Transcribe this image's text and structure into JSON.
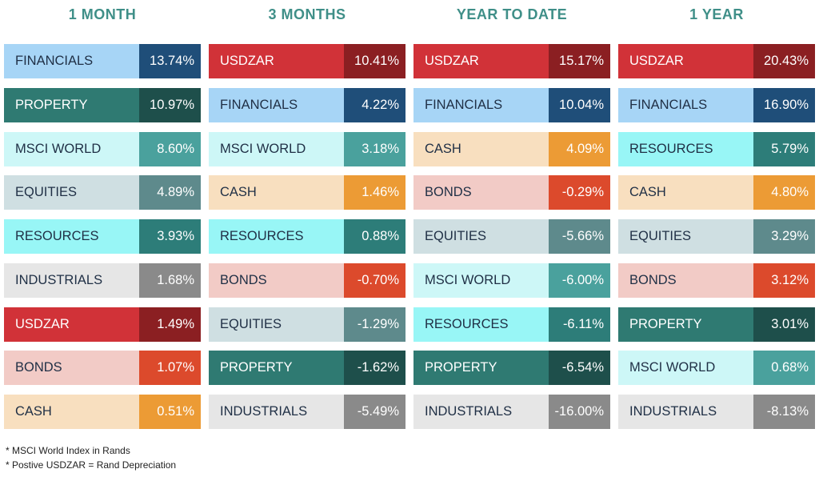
{
  "styles": {
    "FINANCIALS": {
      "bg": "#a7d5f6",
      "text": "#1f2f45",
      "valbg": "#1f4e79",
      "valtext": "#ffffff"
    },
    "PROPERTY": {
      "bg": "#2f7a72",
      "text": "#ffffff",
      "valbg": "#1e4f4b",
      "valtext": "#ffffff"
    },
    "MSCI WORLD": {
      "bg": "#cdf7f7",
      "text": "#1f2f45",
      "valbg": "#4aa19d",
      "valtext": "#ffffff"
    },
    "EQUITIES": {
      "bg": "#cfdfe2",
      "text": "#1f2f45",
      "valbg": "#5e8a8c",
      "valtext": "#ffffff"
    },
    "RESOURCES": {
      "bg": "#98f6f6",
      "text": "#1f2f45",
      "valbg": "#2d7d79",
      "valtext": "#ffffff"
    },
    "INDUSTRIALS": {
      "bg": "#e6e6e6",
      "text": "#1f2f45",
      "valbg": "#8a8a8a",
      "valtext": "#ffffff"
    },
    "USDZAR": {
      "bg": "#d13238",
      "text": "#ffffff",
      "valbg": "#8b1f22",
      "valtext": "#ffffff"
    },
    "BONDS": {
      "bg": "#f2cbc6",
      "text": "#1f2f45",
      "valbg": "#dc4a2c",
      "valtext": "#ffffff"
    },
    "CASH": {
      "bg": "#f8dfbf",
      "text": "#1f2f45",
      "valbg": "#ec9b35",
      "valtext": "#ffffff"
    }
  },
  "chart_data": [
    {
      "type": "table",
      "title": "1 MONTH",
      "rows": [
        {
          "label": "FINANCIALS",
          "value": "13.74%"
        },
        {
          "label": "PROPERTY",
          "value": "10.97%"
        },
        {
          "label": "MSCI WORLD",
          "value": "8.60%"
        },
        {
          "label": "EQUITIES",
          "value": "4.89%"
        },
        {
          "label": "RESOURCES",
          "value": "3.93%"
        },
        {
          "label": "INDUSTRIALS",
          "value": "1.68%"
        },
        {
          "label": "USDZAR",
          "value": "1.49%"
        },
        {
          "label": "BONDS",
          "value": "1.07%"
        },
        {
          "label": "CASH",
          "value": "0.51%"
        }
      ]
    },
    {
      "type": "table",
      "title": "3 MONTHS",
      "rows": [
        {
          "label": "USDZAR",
          "value": "10.41%"
        },
        {
          "label": "FINANCIALS",
          "value": "4.22%"
        },
        {
          "label": "MSCI WORLD",
          "value": "3.18%"
        },
        {
          "label": "CASH",
          "value": "1.46%"
        },
        {
          "label": "RESOURCES",
          "value": "0.88%"
        },
        {
          "label": "BONDS",
          "value": "-0.70%"
        },
        {
          "label": "EQUITIES",
          "value": "-1.29%"
        },
        {
          "label": "PROPERTY",
          "value": "-1.62%"
        },
        {
          "label": "INDUSTRIALS",
          "value": "-5.49%"
        }
      ]
    },
    {
      "type": "table",
      "title": "YEAR TO DATE",
      "rows": [
        {
          "label": "USDZAR",
          "value": "15.17%"
        },
        {
          "label": "FINANCIALS",
          "value": "10.04%"
        },
        {
          "label": "CASH",
          "value": "4.09%"
        },
        {
          "label": "BONDS",
          "value": "-0.29%"
        },
        {
          "label": "EQUITIES",
          "value": "-5.66%"
        },
        {
          "label": "MSCI WORLD",
          "value": "-6.00%"
        },
        {
          "label": "RESOURCES",
          "value": "-6.11%"
        },
        {
          "label": "PROPERTY",
          "value": "-6.54%"
        },
        {
          "label": "INDUSTRIALS",
          "value": "-16.00%"
        }
      ]
    },
    {
      "type": "table",
      "title": "1 YEAR",
      "rows": [
        {
          "label": "USDZAR",
          "value": "20.43%"
        },
        {
          "label": "FINANCIALS",
          "value": "16.90%"
        },
        {
          "label": "RESOURCES",
          "value": "5.79%"
        },
        {
          "label": "CASH",
          "value": "4.80%"
        },
        {
          "label": "EQUITIES",
          "value": "3.29%"
        },
        {
          "label": "BONDS",
          "value": "3.12%"
        },
        {
          "label": "PROPERTY",
          "value": "3.01%"
        },
        {
          "label": "MSCI WORLD",
          "value": "0.68%"
        },
        {
          "label": "INDUSTRIALS",
          "value": "-8.13%"
        }
      ]
    }
  ],
  "footnotes": [
    "* MSCI World Index in  Rands",
    "* Postive USDZAR = Rand Depreciation"
  ]
}
